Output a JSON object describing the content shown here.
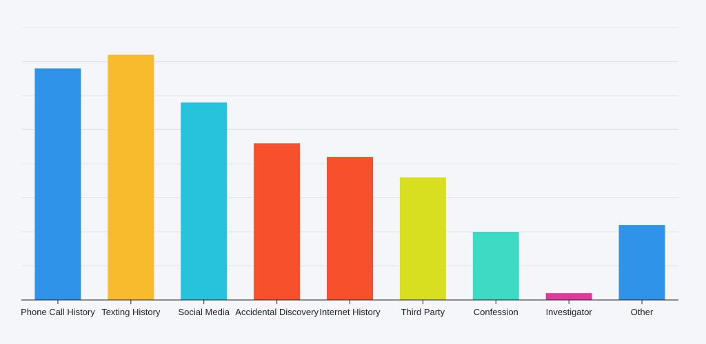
{
  "chart_data": {
    "type": "bar",
    "title": "",
    "xlabel": "",
    "ylabel": "",
    "categories": [
      "Phone Call History",
      "Texting History",
      "Social Media",
      "Accidental Discovery",
      "Internet History",
      "Third Party",
      "Confession",
      "Investigator",
      "Other"
    ],
    "values": [
      34,
      36,
      29,
      23,
      21,
      18,
      10,
      1,
      11
    ],
    "colors": [
      "#2e93e9",
      "#f7bb2d",
      "#27c3dc",
      "#f6502d",
      "#f6502d",
      "#d8df20",
      "#3ddbc3",
      "#e0399b",
      "#2e93e9"
    ],
    "ylim": [
      0,
      40
    ],
    "grid": true,
    "legend": "none",
    "y_tick_labels_visible": false
  }
}
